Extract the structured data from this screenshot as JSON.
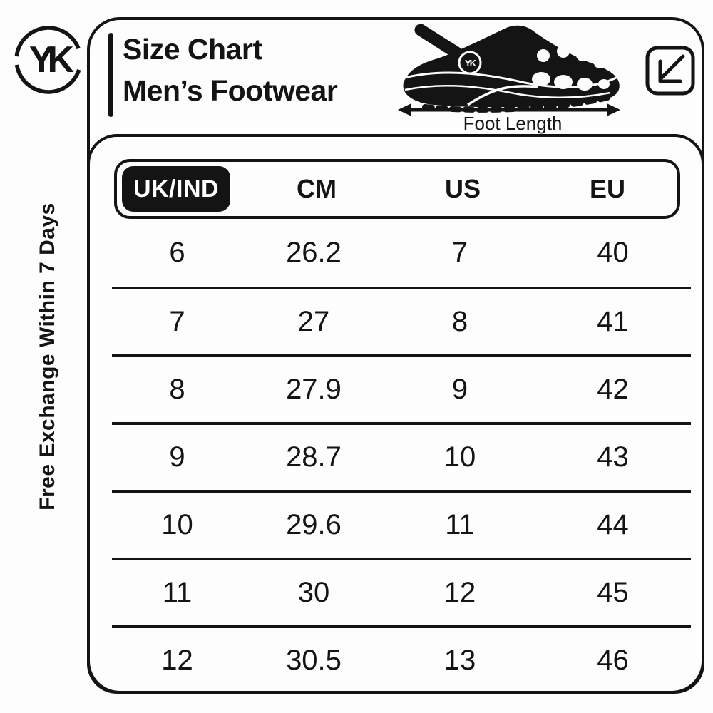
{
  "colors": {
    "ink": "#141414",
    "background": "#fdfdfd",
    "highlight_bg": "#141414",
    "highlight_text": "#ffffff"
  },
  "branding": {
    "monogram": "YK",
    "logo_icon": "yk-monogram-icon"
  },
  "side_note": "Free Exchange Within 7 Days",
  "header": {
    "title_line1": "Size Chart",
    "title_line2": "Men’s Footwear",
    "foot_length_label": "Foot Length",
    "icons": [
      "clog-shoe-icon",
      "foot-length-arrow-icon",
      "diagonal-resize-arrow-icon"
    ]
  },
  "size_table": {
    "columns": [
      "UK/IND",
      "CM",
      "US",
      "EU"
    ],
    "rows": [
      [
        "6",
        "26.2",
        "7",
        "40"
      ],
      [
        "7",
        "27",
        "8",
        "41"
      ],
      [
        "8",
        "27.9",
        "9",
        "42"
      ],
      [
        "9",
        "28.7",
        "10",
        "43"
      ],
      [
        "10",
        "29.6",
        "11",
        "44"
      ],
      [
        "11",
        "30",
        "12",
        "45"
      ],
      [
        "12",
        "30.5",
        "13",
        "46"
      ]
    ]
  },
  "chart_data": {
    "type": "table",
    "title": "Size Chart Men’s Footwear",
    "columns": [
      "UK/IND",
      "CM",
      "US",
      "EU"
    ],
    "rows": [
      [
        6,
        26.2,
        7,
        40
      ],
      [
        7,
        27,
        8,
        41
      ],
      [
        8,
        27.9,
        9,
        42
      ],
      [
        9,
        28.7,
        10,
        43
      ],
      [
        10,
        29.6,
        11,
        44
      ],
      [
        11,
        30,
        12,
        45
      ],
      [
        12,
        30.5,
        13,
        46
      ]
    ],
    "legend_position": "none",
    "grid": "horizontal-row-dividers"
  }
}
